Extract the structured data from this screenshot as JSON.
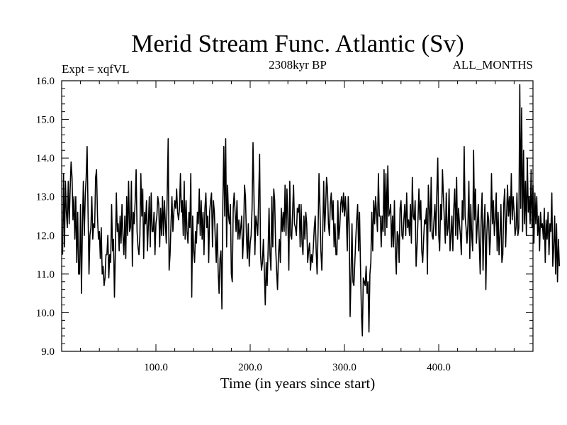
{
  "chart_data": {
    "type": "line",
    "title": "Merid Stream Func. Atlantic (Sv)",
    "left_label": "Expt = xqfVL",
    "center_label": "2308kyr BP",
    "right_label": "ALL_MONTHS",
    "xlabel": "Time (in years since start)",
    "ylabel": "",
    "xlim": [
      0,
      500
    ],
    "ylim": [
      9.0,
      16.0
    ],
    "xticks": [
      100,
      200,
      300,
      400
    ],
    "xtick_labels": [
      "100.0",
      "200.0",
      "300.0",
      "400.0"
    ],
    "yticks": [
      9,
      10,
      11,
      12,
      13,
      14,
      15,
      16
    ],
    "ytick_labels": [
      "9.0",
      "10.0",
      "11.0",
      "12.0",
      "13.0",
      "14.0",
      "15.0",
      "16.0"
    ],
    "series": [
      {
        "name": "Merid Stream Func. Atlantic",
        "x_start": 1,
        "x_step": 1,
        "values": [
          11.5,
          13.6,
          11.7,
          13.4,
          12.6,
          12.2,
          13.4,
          12.3,
          13.2,
          13.9,
          13.5,
          12.4,
          13.0,
          11.9,
          13.0,
          11.3,
          12.6,
          11.0,
          11.0,
          12.8,
          10.5,
          12.2,
          13.4,
          12.0,
          13.0,
          13.5,
          14.3,
          12.6,
          11.0,
          12.0,
          12.2,
          13.0,
          11.9,
          12.3,
          12.2,
          13.5,
          13.7,
          12.5,
          11.9,
          12.1,
          11.4,
          12.2,
          11.0,
          11.2,
          10.7,
          10.9,
          11.5,
          11.5,
          12.0,
          10.9,
          11.5,
          11.3,
          12.8,
          11.6,
          11.9,
          10.4,
          11.6,
          13.1,
          12.1,
          12.3,
          11.6,
          12.5,
          11.8,
          12.8,
          12.0,
          11.5,
          12.5,
          11.4,
          13.0,
          12.0,
          13.4,
          12.1,
          12.2,
          13.4,
          11.2,
          12.6,
          12.3,
          12.9,
          13.7,
          12.1,
          11.7,
          11.5,
          12.0,
          13.6,
          12.5,
          13.2,
          11.4,
          12.6,
          12.3,
          12.9,
          11.6,
          12.3,
          13.0,
          11.7,
          13.1,
          12.1,
          12.1,
          12.6,
          11.5,
          12.3,
          12.5,
          13.0,
          12.8,
          11.7,
          12.7,
          12.0,
          13.0,
          12.0,
          12.9,
          12.3,
          11.8,
          13.1,
          14.5,
          11.1,
          11.5,
          12.3,
          13.0,
          12.1,
          12.6,
          12.9,
          12.7,
          13.2,
          12.6,
          12.4,
          12.7,
          13.6,
          12.6,
          12.9,
          12.0,
          13.4,
          11.9,
          12.9,
          12.1,
          11.8,
          12.6,
          12.2,
          13.6,
          10.4,
          12.5,
          11.6,
          11.3,
          12.1,
          11.8,
          12.6,
          12.3,
          13.2,
          12.0,
          12.9,
          11.9,
          12.6,
          11.5,
          12.7,
          13.1,
          12.2,
          12.5,
          11.3,
          12.6,
          12.9,
          13.1,
          11.7,
          12.9,
          12.6,
          11.9,
          11.3,
          12.3,
          11.1,
          10.5,
          11.4,
          11.6,
          10.1,
          12.8,
          14.3,
          12.5,
          14.5,
          11.7,
          13.3,
          12.5,
          12.3,
          12.8,
          11.0,
          10.8,
          12.7,
          13.1,
          12.6,
          12.1,
          12.9,
          11.9,
          12.4,
          11.9,
          12.2,
          12.5,
          11.4,
          12.0,
          13.3,
          13.0,
          12.0,
          11.4,
          12.3,
          11.2,
          11.8,
          12.0,
          12.7,
          14.4,
          13.0,
          11.5,
          12.5,
          12.3,
          12.0,
          13.0,
          14.1,
          11.5,
          11.1,
          11.3,
          11.9,
          11.1,
          10.2,
          11.3,
          10.7,
          11.6,
          12.7,
          11.5,
          11.1,
          13.0,
          11.7,
          13.2,
          12.9,
          11.7,
          11.1,
          10.6,
          11.5,
          11.9,
          11.3,
          12.7,
          12.1,
          12.6,
          12.1,
          13.3,
          12.0,
          13.2,
          12.4,
          11.1,
          13.4,
          12.0,
          11.9,
          12.6,
          13.3,
          12.3,
          12.2,
          12.0,
          12.7,
          12.6,
          12.8,
          11.7,
          12.8,
          11.8,
          11.5,
          12.5,
          11.9,
          12.6,
          12.3,
          11.3,
          11.6,
          11.8,
          11.1,
          11.5,
          11.3,
          11.7,
          12.2,
          12.5,
          11.6,
          11.0,
          12.1,
          13.6,
          12.7,
          11.6,
          11.1,
          12.1,
          13.4,
          12.1,
          12.7,
          13.5,
          13.2,
          12.3,
          12.0,
          12.8,
          13.1,
          12.4,
          12.9,
          11.7,
          12.3,
          11.5,
          11.5,
          12.9,
          11.9,
          12.2,
          12.8,
          13.0,
          12.6,
          13.1,
          12.5,
          13.0,
          12.5,
          11.6,
          13.0,
          12.3,
          9.9,
          11.0,
          12.3,
          10.8,
          10.7,
          11.3,
          11.9,
          12.4,
          12.8,
          11.6,
          12.6,
          11.2,
          10.0,
          9.4,
          10.9,
          10.8,
          10.7,
          11.2,
          10.5,
          10.8,
          9.5,
          11.0,
          11.3,
          12.6,
          11.6,
          12.9,
          12.3,
          13.0,
          12.6,
          12.1,
          13.6,
          12.5,
          12.5,
          11.7,
          12.5,
          12.1,
          13.7,
          12.0,
          13.6,
          12.2,
          13.8,
          12.5,
          12.6,
          12.8,
          11.7,
          12.5,
          11.7,
          12.9,
          11.6,
          11.0,
          12.1,
          12.0,
          11.3,
          12.7,
          12.9,
          12.0,
          11.9,
          12.4,
          12.8,
          12.0,
          13.1,
          12.2,
          12.4,
          12.0,
          12.8,
          11.8,
          13.5,
          12.5,
          12.4,
          12.9,
          11.2,
          11.7,
          12.4,
          13.2,
          12.4,
          12.9,
          11.6,
          11.3,
          11.9,
          12.4,
          12.3,
          12.7,
          11.0,
          13.3,
          12.7,
          12.1,
          13.5,
          12.0,
          11.9,
          12.4,
          12.8,
          12.0,
          13.1,
          14.0,
          12.0,
          11.6,
          12.8,
          12.4,
          13.7,
          13.0,
          12.4,
          11.8,
          13.1,
          12.0,
          12.2,
          13.2,
          11.6,
          12.0,
          12.5,
          11.6,
          12.7,
          13.2,
          12.0,
          13.5,
          11.9,
          12.7,
          12.3,
          12.0,
          11.5,
          12.9,
          12.4,
          14.3,
          12.5,
          12.2,
          11.8,
          12.3,
          13.4,
          11.4,
          12.8,
          12.0,
          11.6,
          14.2,
          12.4,
          13.2,
          11.8,
          12.3,
          12.8,
          11.8,
          11.0,
          12.4,
          13.1,
          11.1,
          12.2,
          12.8,
          10.6,
          12.0,
          12.6,
          12.4,
          11.5,
          12.0,
          13.6,
          12.3,
          12.9,
          12.0,
          12.4,
          13.1,
          11.6,
          12.6,
          11.5,
          12.0,
          12.8,
          11.3,
          11.5,
          12.8,
          13.2,
          11.7,
          12.5,
          13.3,
          12.5,
          13.0,
          12.3,
          13.6,
          12.4,
          13.0,
          12.6,
          12.0,
          12.2,
          13.1,
          12.0,
          12.2,
          15.9,
          12.7,
          15.3,
          12.1,
          14.2,
          12.3,
          13.4,
          12.0,
          14.0,
          12.6,
          13.0,
          12.3,
          13.7,
          12.2,
          13.3,
          11.8,
          13.1,
          12.3,
          13.0,
          12.0,
          12.5,
          11.6,
          12.6,
          12.2,
          12.3,
          11.9,
          12.7,
          11.3,
          12.4,
          11.9,
          12.6,
          11.5,
          12.3,
          12.1,
          13.1,
          11.2,
          11.7,
          12.5,
          11.0,
          12.3,
          10.8,
          11.9,
          11.2
        ]
      }
    ]
  }
}
